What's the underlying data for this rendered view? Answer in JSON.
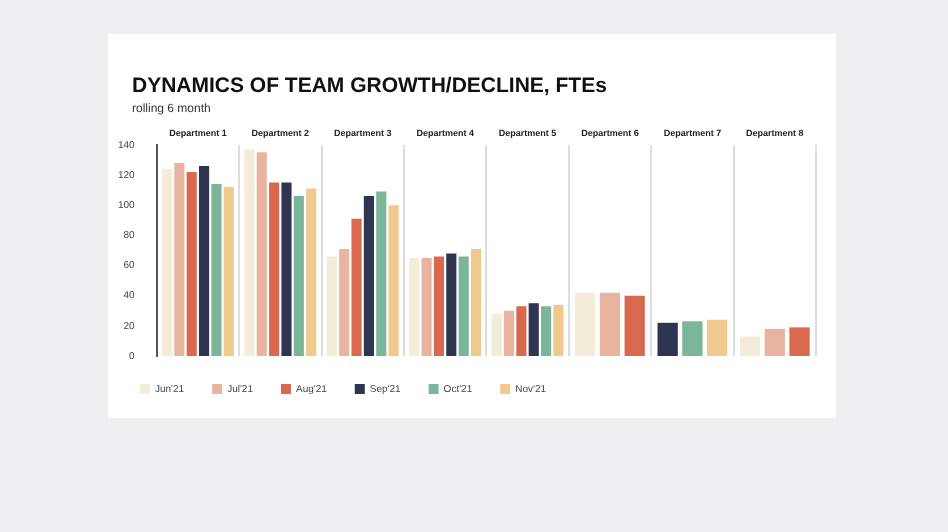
{
  "chart_data": {
    "type": "bar",
    "title": "DYNAMICS OF TEAM GROWTH/DECLINE, FTEs",
    "subtitle": "rolling 6 month",
    "categories": [
      "Department 1",
      "Department 2",
      "Department 3",
      "Department 4",
      "Department 5",
      "Department 6",
      "Department 7",
      "Department 8"
    ],
    "series": [
      {
        "name": "Jun'21",
        "color": "#f3ecd9",
        "values": [
          124,
          137,
          66,
          65,
          28,
          42,
          null,
          13
        ]
      },
      {
        "name": "Jul'21",
        "color": "#e8b4a0",
        "values": [
          128,
          135,
          71,
          65,
          30,
          42,
          null,
          18
        ]
      },
      {
        "name": "Aug'21",
        "color": "#d9694e",
        "values": [
          122,
          115,
          91,
          66,
          33,
          40,
          null,
          19
        ]
      },
      {
        "name": "Sep'21",
        "color": "#2f3450",
        "values": [
          126,
          115,
          106,
          68,
          35,
          null,
          22,
          null
        ]
      },
      {
        "name": "Oct'21",
        "color": "#7bb59a",
        "values": [
          114,
          106,
          109,
          66,
          33,
          null,
          23,
          null
        ]
      },
      {
        "name": "Nov'21",
        "color": "#efc98d",
        "values": [
          112,
          111,
          100,
          71,
          34,
          null,
          24,
          null
        ]
      }
    ],
    "ylim": [
      0,
      140
    ],
    "yticks": [
      0,
      20,
      40,
      60,
      80,
      100,
      120,
      140
    ],
    "grid": "x",
    "legend": "bottom left"
  }
}
